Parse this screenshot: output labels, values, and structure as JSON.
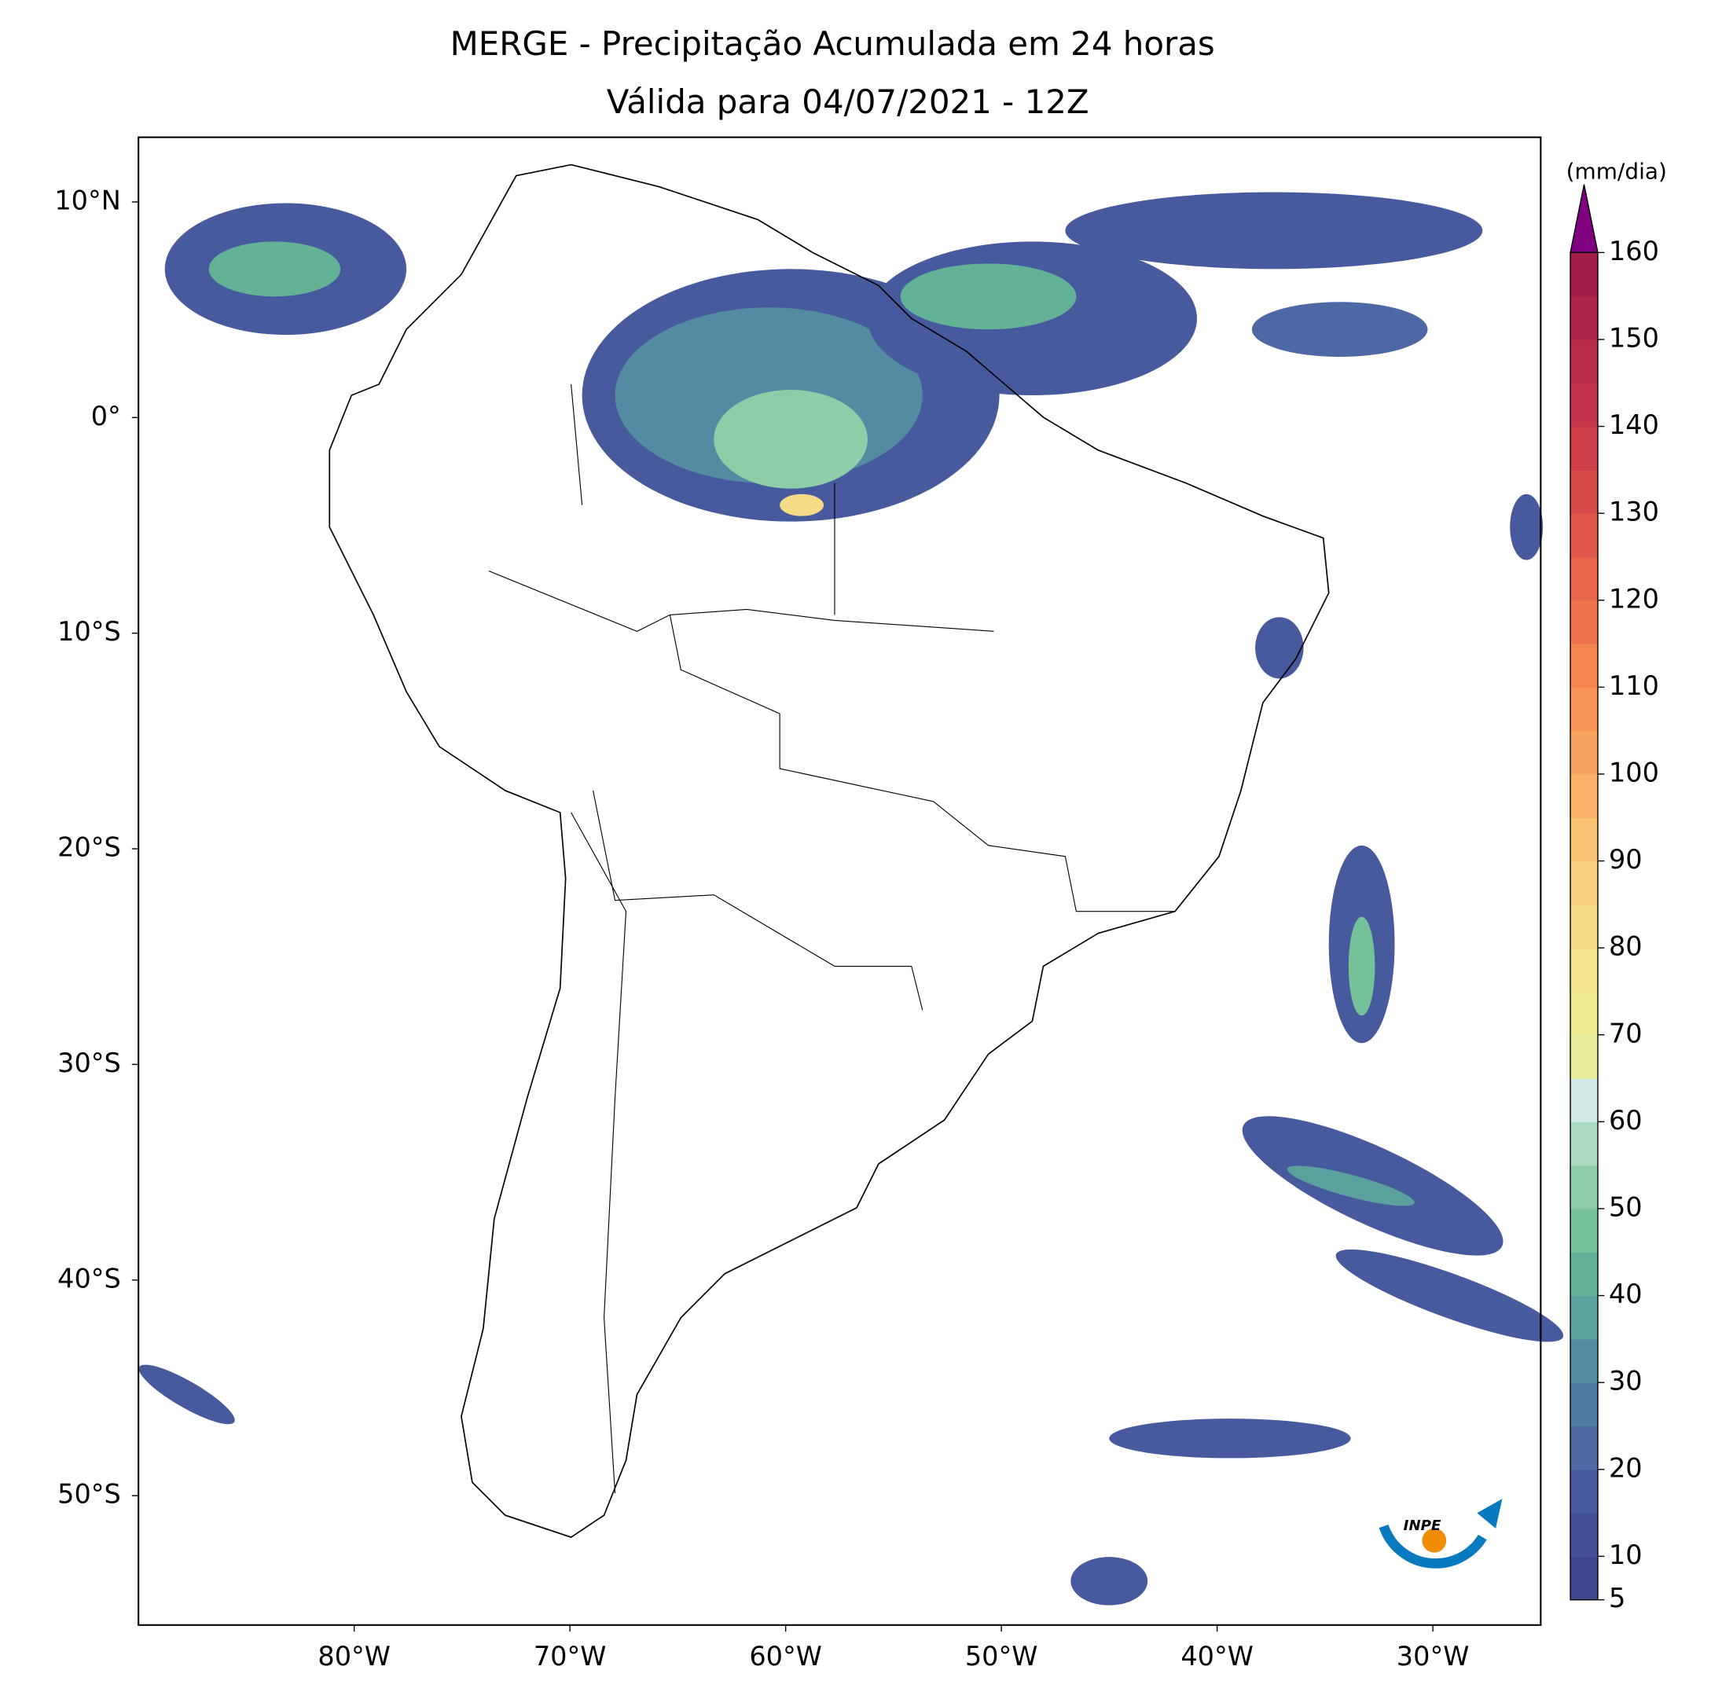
{
  "chart_data": {
    "type": "map",
    "title": "MERGE - Precipitação Acumulada em 24 horas",
    "subtitle": "Válida para 04/07/2021 - 12Z",
    "xlim": [
      -90,
      -25
    ],
    "ylim": [
      -56,
      13
    ],
    "xticks": [
      {
        "value": -80,
        "label": "80°W"
      },
      {
        "value": -70,
        "label": "70°W"
      },
      {
        "value": -60,
        "label": "60°W"
      },
      {
        "value": -50,
        "label": "50°W"
      },
      {
        "value": -40,
        "label": "40°W"
      },
      {
        "value": -30,
        "label": "30°W"
      }
    ],
    "yticks": [
      {
        "value": 10,
        "label": "10°N"
      },
      {
        "value": 0,
        "label": "0°"
      },
      {
        "value": -10,
        "label": "10°S"
      },
      {
        "value": -20,
        "label": "20°S"
      },
      {
        "value": -30,
        "label": "30°S"
      },
      {
        "value": -40,
        "label": "40°S"
      },
      {
        "value": -50,
        "label": "50°S"
      }
    ],
    "colorbar": {
      "label": "(mm/dia)",
      "clim": [
        5,
        160
      ],
      "ticks": [
        5,
        10,
        20,
        30,
        40,
        50,
        60,
        70,
        80,
        90,
        100,
        110,
        120,
        130,
        140,
        150,
        160
      ],
      "extend_color": "#800080",
      "colors": [
        "#3e4691",
        "#434f99",
        "#485a9e",
        "#4e68a4",
        "#4f7aa4",
        "#528ba2",
        "#5aa09c",
        "#62b298",
        "#74c19a",
        "#8dcda7",
        "#acdac0",
        "#d0e8e3",
        "#e6ec98",
        "#ede98f",
        "#f2e48c",
        "#f5db86",
        "#f8cf7c",
        "#f9c270",
        "#fab366",
        "#f9a45d",
        "#f79456",
        "#f48550",
        "#ef744c",
        "#e8654a",
        "#e05649",
        "#d84a48",
        "#cf3e48",
        "#c53448",
        "#ba2b48",
        "#ae2449",
        "#a21c49"
      ]
    },
    "logo": "INPE"
  }
}
